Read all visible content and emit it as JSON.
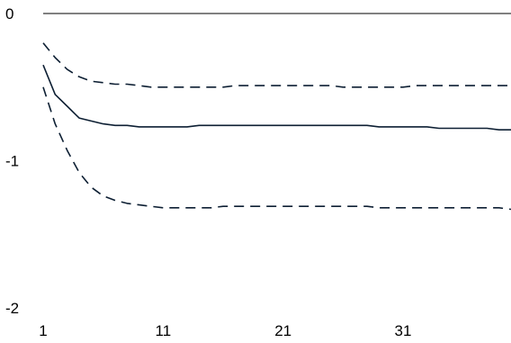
{
  "chart_data": {
    "type": "line",
    "title": "",
    "xlabel": "",
    "ylabel": "",
    "xlim": [
      1,
      40
    ],
    "ylim": [
      -2,
      0
    ],
    "x_ticks": [
      1,
      11,
      21,
      31
    ],
    "y_ticks": [
      0,
      -1,
      -2
    ],
    "x_tick_labels": [
      "1",
      "11",
      "21",
      "31"
    ],
    "y_tick_labels": [
      "0",
      "-1",
      "-2"
    ],
    "zero_line": true,
    "grid": false,
    "legend": "none",
    "colors": {
      "line": "#0d1f33",
      "axis": "#000000",
      "text": "#000000"
    },
    "x": [
      1,
      2,
      3,
      4,
      5,
      6,
      7,
      8,
      9,
      10,
      11,
      12,
      13,
      14,
      15,
      16,
      17,
      18,
      19,
      20,
      21,
      22,
      23,
      24,
      25,
      26,
      27,
      28,
      29,
      30,
      31,
      32,
      33,
      34,
      35,
      36,
      37,
      38,
      39,
      40
    ],
    "series": [
      {
        "style": "solid",
        "values": [
          -0.35,
          -0.55,
          -0.63,
          -0.71,
          -0.73,
          -0.75,
          -0.76,
          -0.76,
          -0.77,
          -0.77,
          -0.77,
          -0.77,
          -0.77,
          -0.76,
          -0.76,
          -0.76,
          -0.76,
          -0.76,
          -0.76,
          -0.76,
          -0.76,
          -0.76,
          -0.76,
          -0.76,
          -0.76,
          -0.76,
          -0.76,
          -0.76,
          -0.77,
          -0.77,
          -0.77,
          -0.77,
          -0.77,
          -0.78,
          -0.78,
          -0.78,
          -0.78,
          -0.78,
          -0.79,
          -0.79
        ]
      },
      {
        "style": "dashed",
        "values": [
          -0.2,
          -0.3,
          -0.38,
          -0.43,
          -0.46,
          -0.47,
          -0.48,
          -0.48,
          -0.49,
          -0.5,
          -0.5,
          -0.5,
          -0.5,
          -0.5,
          -0.5,
          -0.5,
          -0.49,
          -0.49,
          -0.49,
          -0.49,
          -0.49,
          -0.49,
          -0.49,
          -0.49,
          -0.49,
          -0.5,
          -0.5,
          -0.5,
          -0.5,
          -0.5,
          -0.5,
          -0.49,
          -0.49,
          -0.49,
          -0.49,
          -0.49,
          -0.49,
          -0.49,
          -0.49,
          -0.49
        ]
      },
      {
        "style": "dashed",
        "values": [
          -0.5,
          -0.75,
          -0.93,
          -1.08,
          -1.18,
          -1.24,
          -1.27,
          -1.29,
          -1.3,
          -1.31,
          -1.32,
          -1.32,
          -1.32,
          -1.32,
          -1.32,
          -1.31,
          -1.31,
          -1.31,
          -1.31,
          -1.31,
          -1.31,
          -1.31,
          -1.31,
          -1.31,
          -1.31,
          -1.31,
          -1.31,
          -1.31,
          -1.32,
          -1.32,
          -1.32,
          -1.32,
          -1.32,
          -1.32,
          -1.32,
          -1.32,
          -1.32,
          -1.32,
          -1.32,
          -1.33
        ]
      }
    ]
  }
}
